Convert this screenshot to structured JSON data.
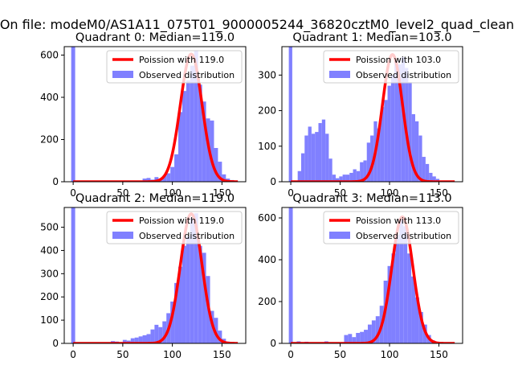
{
  "figure": {
    "suptitle": "On file: modeM0/AS1A11_075T01_9000005244_36820cztM0_level2_quad_clean"
  },
  "colors": {
    "hist": "#8080ff",
    "curve": "#ff0000",
    "axis": "#000000"
  },
  "chart_data": [
    {
      "type": "bar",
      "title": "Quadrant 0: Median=119.0",
      "legend": [
        "Poission with 119.0",
        "Observed distribution"
      ],
      "legend_position": "top-right",
      "xlim": [
        -9,
        174
      ],
      "ylim": [
        0,
        640
      ],
      "xticks": [
        0,
        50,
        100,
        150
      ],
      "yticks": [
        0,
        200,
        400,
        600
      ],
      "hist": {
        "bin_width": 4,
        "bins": [
          {
            "x": -2,
            "count": 640
          },
          {
            "x": 70,
            "count": 15
          },
          {
            "x": 74,
            "count": 18
          },
          {
            "x": 78,
            "count": 10
          },
          {
            "x": 82,
            "count": 22
          },
          {
            "x": 86,
            "count": 12
          },
          {
            "x": 90,
            "count": 28
          },
          {
            "x": 94,
            "count": 40
          },
          {
            "x": 98,
            "count": 70
          },
          {
            "x": 102,
            "count": 130
          },
          {
            "x": 106,
            "count": 330
          },
          {
            "x": 110,
            "count": 430
          },
          {
            "x": 114,
            "count": 480
          },
          {
            "x": 118,
            "count": 550
          },
          {
            "x": 122,
            "count": 620
          },
          {
            "x": 126,
            "count": 460
          },
          {
            "x": 130,
            "count": 380
          },
          {
            "x": 134,
            "count": 300
          },
          {
            "x": 138,
            "count": 290
          },
          {
            "x": 142,
            "count": 160
          },
          {
            "x": 146,
            "count": 95
          },
          {
            "x": 150,
            "count": 35
          },
          {
            "x": 154,
            "count": 15
          },
          {
            "x": 158,
            "count": 8
          },
          {
            "x": 162,
            "count": 5
          }
        ]
      },
      "poisson": {
        "mean": 119.0,
        "peak": 605,
        "x_range": [
          0,
          166
        ]
      }
    },
    {
      "type": "bar",
      "title": "Quadrant 1: Median=103.0",
      "legend": [
        "Poission with 103.0",
        "Observed distribution"
      ],
      "legend_position": "top-right",
      "xlim": [
        -9,
        174
      ],
      "ylim": [
        0,
        380
      ],
      "xticks": [
        0,
        50,
        100,
        150
      ],
      "yticks": [
        0,
        100,
        200,
        300
      ],
      "hist": {
        "bin_width": 3.5,
        "bins": [
          {
            "x": -2,
            "count": 380
          },
          {
            "x": 7,
            "count": 30
          },
          {
            "x": 10.5,
            "count": 80
          },
          {
            "x": 14,
            "count": 130
          },
          {
            "x": 17.5,
            "count": 155
          },
          {
            "x": 21,
            "count": 135
          },
          {
            "x": 24.5,
            "count": 140
          },
          {
            "x": 28,
            "count": 165
          },
          {
            "x": 31.5,
            "count": 175
          },
          {
            "x": 35,
            "count": 135
          },
          {
            "x": 38.5,
            "count": 65
          },
          {
            "x": 42,
            "count": 20
          },
          {
            "x": 45.5,
            "count": 10
          },
          {
            "x": 49,
            "count": 15
          },
          {
            "x": 52.5,
            "count": 20
          },
          {
            "x": 56,
            "count": 20
          },
          {
            "x": 59.5,
            "count": 25
          },
          {
            "x": 63,
            "count": 35
          },
          {
            "x": 66.5,
            "count": 30
          },
          {
            "x": 70,
            "count": 55
          },
          {
            "x": 73.5,
            "count": 60
          },
          {
            "x": 77,
            "count": 110
          },
          {
            "x": 80.5,
            "count": 130
          },
          {
            "x": 84,
            "count": 170
          },
          {
            "x": 87.5,
            "count": 150
          },
          {
            "x": 91,
            "count": 210
          },
          {
            "x": 94.5,
            "count": 230
          },
          {
            "x": 98,
            "count": 270
          },
          {
            "x": 101.5,
            "count": 300
          },
          {
            "x": 105,
            "count": 340
          },
          {
            "x": 108.5,
            "count": 330
          },
          {
            "x": 112,
            "count": 350
          },
          {
            "x": 115.5,
            "count": 320
          },
          {
            "x": 119,
            "count": 280
          },
          {
            "x": 122.5,
            "count": 190
          },
          {
            "x": 126,
            "count": 170
          },
          {
            "x": 129.5,
            "count": 130
          },
          {
            "x": 133,
            "count": 70
          },
          {
            "x": 136.5,
            "count": 50
          },
          {
            "x": 140,
            "count": 25
          },
          {
            "x": 143.5,
            "count": 15
          },
          {
            "x": 147,
            "count": 8
          }
        ]
      },
      "poisson": {
        "mean": 103.0,
        "peak": 358,
        "x_range": [
          0,
          166
        ]
      }
    },
    {
      "type": "bar",
      "title": "Quadrant 2: Median=119.0",
      "legend": [
        "Poission with 119.0",
        "Observed distribution"
      ],
      "legend_position": "top-right",
      "xlim": [
        -9,
        174
      ],
      "ylim": [
        0,
        585
      ],
      "xticks": [
        0,
        50,
        100,
        150
      ],
      "yticks": [
        0,
        100,
        200,
        300,
        400,
        500
      ],
      "hist": {
        "bin_width": 4,
        "bins": [
          {
            "x": -2,
            "count": 585
          },
          {
            "x": 38,
            "count": 10
          },
          {
            "x": 42,
            "count": 8
          },
          {
            "x": 50,
            "count": 15
          },
          {
            "x": 54,
            "count": 12
          },
          {
            "x": 58,
            "count": 22
          },
          {
            "x": 62,
            "count": 25
          },
          {
            "x": 66,
            "count": 30
          },
          {
            "x": 70,
            "count": 35
          },
          {
            "x": 74,
            "count": 40
          },
          {
            "x": 78,
            "count": 60
          },
          {
            "x": 82,
            "count": 80
          },
          {
            "x": 86,
            "count": 70
          },
          {
            "x": 90,
            "count": 95
          },
          {
            "x": 94,
            "count": 130
          },
          {
            "x": 98,
            "count": 180
          },
          {
            "x": 102,
            "count": 260
          },
          {
            "x": 106,
            "count": 330
          },
          {
            "x": 110,
            "count": 420
          },
          {
            "x": 114,
            "count": 460
          },
          {
            "x": 118,
            "count": 540
          },
          {
            "x": 122,
            "count": 560
          },
          {
            "x": 126,
            "count": 420
          },
          {
            "x": 130,
            "count": 390
          },
          {
            "x": 134,
            "count": 290
          },
          {
            "x": 138,
            "count": 140
          },
          {
            "x": 142,
            "count": 110
          },
          {
            "x": 146,
            "count": 55
          },
          {
            "x": 150,
            "count": 20
          },
          {
            "x": 154,
            "count": 8
          }
        ]
      },
      "poisson": {
        "mean": 119.0,
        "peak": 558,
        "x_range": [
          0,
          166
        ]
      }
    },
    {
      "type": "bar",
      "title": "Quadrant 3: Median=113.0",
      "legend": [
        "Poission with 113.0",
        "Observed distribution"
      ],
      "legend_position": "top-right",
      "xlim": [
        -9,
        174
      ],
      "ylim": [
        0,
        650
      ],
      "xticks": [
        0,
        50,
        100,
        150
      ],
      "yticks": [
        0,
        200,
        400,
        600
      ],
      "hist": {
        "bin_width": 4,
        "bins": [
          {
            "x": -2,
            "count": 650
          },
          {
            "x": 6,
            "count": 10
          },
          {
            "x": 14,
            "count": 8
          },
          {
            "x": 34,
            "count": 10
          },
          {
            "x": 54,
            "count": 40
          },
          {
            "x": 58,
            "count": 45
          },
          {
            "x": 62,
            "count": 30
          },
          {
            "x": 66,
            "count": 50
          },
          {
            "x": 70,
            "count": 55
          },
          {
            "x": 74,
            "count": 65
          },
          {
            "x": 78,
            "count": 90
          },
          {
            "x": 82,
            "count": 110
          },
          {
            "x": 86,
            "count": 130
          },
          {
            "x": 90,
            "count": 180
          },
          {
            "x": 94,
            "count": 300
          },
          {
            "x": 98,
            "count": 370
          },
          {
            "x": 102,
            "count": 430
          },
          {
            "x": 106,
            "count": 520
          },
          {
            "x": 110,
            "count": 600
          },
          {
            "x": 114,
            "count": 560
          },
          {
            "x": 118,
            "count": 430
          },
          {
            "x": 122,
            "count": 320
          },
          {
            "x": 126,
            "count": 220
          },
          {
            "x": 130,
            "count": 150
          },
          {
            "x": 134,
            "count": 90
          },
          {
            "x": 138,
            "count": 40
          },
          {
            "x": 142,
            "count": 15
          },
          {
            "x": 146,
            "count": 8
          }
        ]
      },
      "poisson": {
        "mean": 113.0,
        "peak": 605,
        "x_range": [
          0,
          166
        ]
      }
    }
  ]
}
